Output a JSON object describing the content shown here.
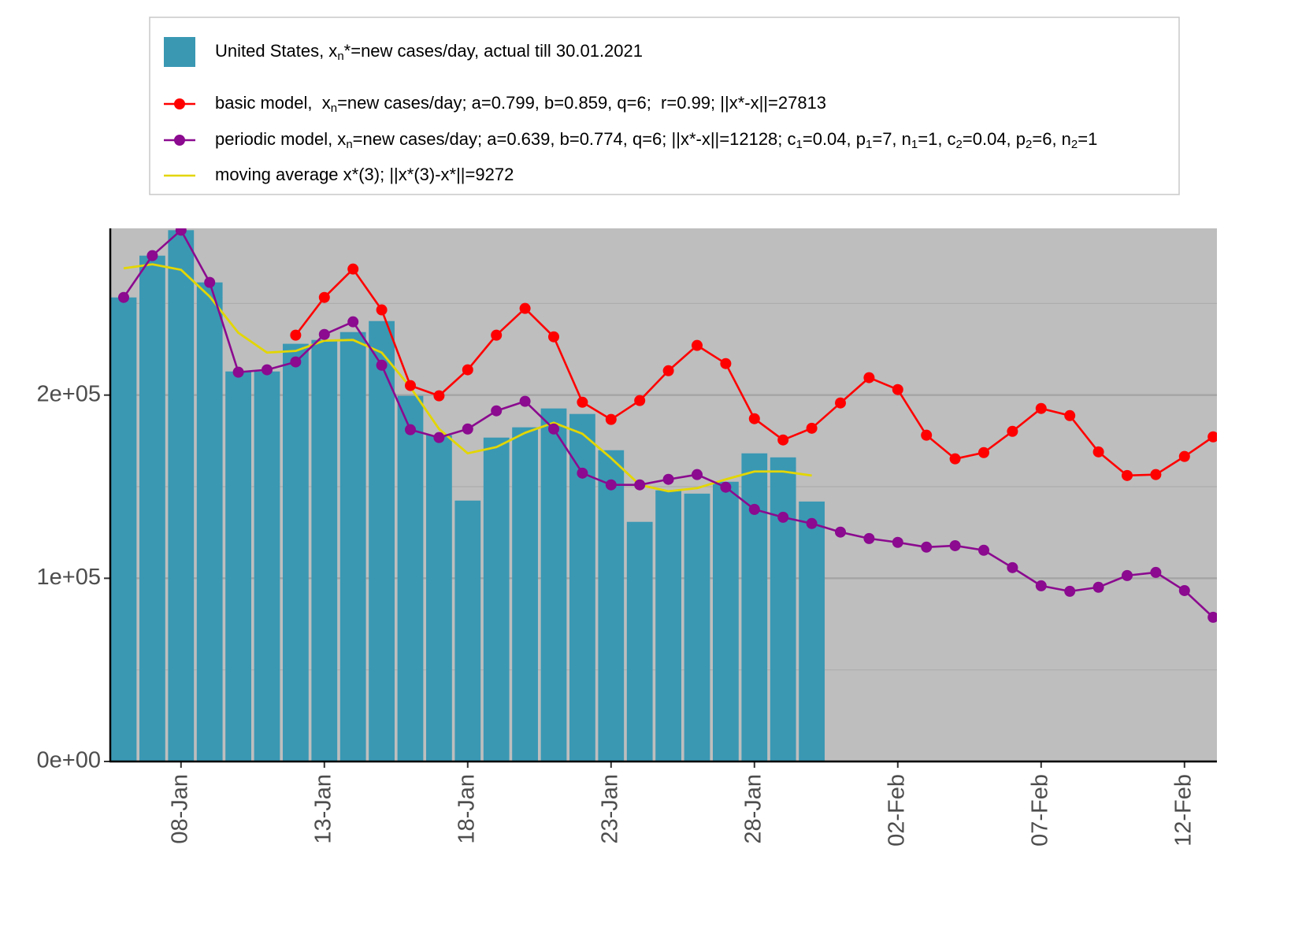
{
  "chart_data": {
    "type": "bar",
    "categories": [
      null,
      null,
      "08-Jan",
      null,
      null,
      null,
      null,
      "13-Jan",
      null,
      null,
      null,
      null,
      "18-Jan",
      null,
      null,
      null,
      null,
      "23-Jan",
      null,
      null,
      null,
      null,
      "28-Jan",
      null,
      null,
      null,
      null,
      "02-Feb",
      null,
      null,
      null,
      null,
      "07-Feb",
      null,
      null,
      null,
      null,
      "12-Feb",
      null
    ],
    "ylim": [
      0,
      291000
    ],
    "yticks": [
      {
        "value": 0,
        "label": "0e+00"
      },
      {
        "value": 100000,
        "label": "1e+05"
      },
      {
        "value": 200000,
        "label": "2e+05"
      }
    ],
    "yminor": [
      50000,
      150000,
      250000
    ],
    "grid": true,
    "background": "#bebebe",
    "series": [
      {
        "name": [
          "United States, x",
          "n",
          "*=new cases/day, actual till 30.01.2021"
        ],
        "type": "bar",
        "color": "#3a98b3",
        "values": [
          253300,
          276100,
          290000,
          261500,
          212900,
          212900,
          228000,
          230100,
          234400,
          240400,
          199600,
          178100,
          142400,
          176800,
          182400,
          192700,
          189700,
          169900,
          130800,
          148000,
          146200,
          152700,
          168200,
          166000,
          141900,
          null,
          null,
          null,
          null,
          null,
          null,
          null,
          null,
          null,
          null,
          null,
          null,
          null,
          null
        ]
      },
      {
        "name": [
          "basic model,  x",
          "n",
          "=new cases/day; a=0.799, b=0.859, q=6;  r=0.99; ||x*-x||=27813"
        ],
        "type": "line",
        "color": "#ff0000",
        "values": [
          null,
          null,
          null,
          null,
          null,
          null,
          232700,
          253300,
          268800,
          246500,
          205200,
          199600,
          213800,
          232700,
          247300,
          231800,
          196100,
          186700,
          197000,
          213300,
          227100,
          217200,
          187100,
          175500,
          181900,
          195700,
          209500,
          203000,
          178100,
          165200,
          168600,
          180200,
          192700,
          188800,
          169000,
          156100,
          156600,
          166500,
          177200
        ]
      },
      {
        "name": [
          "periodic model, x",
          "n",
          "=new cases/day; a=0.639, b=0.774, q=6; ||x*-x||=12128; c",
          "1",
          "=0.04, p",
          "1",
          "=7, n",
          "1",
          "=1, c",
          "2",
          "=0.04, p",
          "2",
          "=6, n",
          "2",
          "=1"
        ],
        "type": "line",
        "color": "#8b0a8f",
        "values": [
          253300,
          276100,
          290000,
          261500,
          212500,
          213800,
          218100,
          233100,
          240000,
          216300,
          181100,
          176800,
          181500,
          191400,
          196600,
          181500,
          157400,
          151000,
          151000,
          154000,
          156600,
          149700,
          137600,
          133300,
          129900,
          125200,
          121700,
          119600,
          117000,
          117800,
          115300,
          105800,
          95900,
          92900,
          95100,
          101500,
          103200,
          93300,
          78700
        ]
      },
      {
        "name": [
          "moving average x*(3); ||x*(3)-x*||=9272"
        ],
        "type": "smooth",
        "color": "#e3d600",
        "values": [
          269200,
          271400,
          268400,
          253800,
          234000,
          223200,
          224100,
          229700,
          230100,
          223200,
          204300,
          181500,
          168200,
          171600,
          179400,
          184900,
          178900,
          165600,
          151000,
          147500,
          149200,
          154000,
          158300,
          158300,
          156100,
          null,
          null,
          null,
          null,
          null,
          null,
          null,
          null,
          null,
          null,
          null,
          null,
          null,
          null
        ]
      }
    ]
  }
}
